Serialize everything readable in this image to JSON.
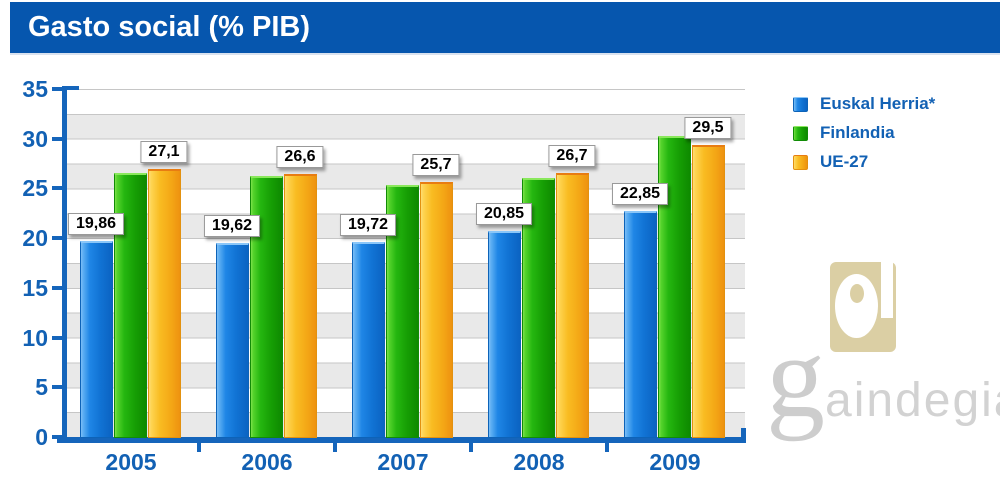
{
  "header": {
    "title": "Gasto social (% PIB)"
  },
  "chart_data": {
    "type": "bar",
    "title": "Gasto social (% PIB)",
    "categories": [
      "2005",
      "2006",
      "2007",
      "2008",
      "2009"
    ],
    "series": [
      {
        "name": "Euskal Herria*",
        "color_key": "blue",
        "color": "#1479DB",
        "values": [
          19.86,
          19.62,
          19.72,
          20.85,
          22.85
        ],
        "value_labels": [
          "19,86",
          "19,62",
          "19,72",
          "20,85",
          "22,85"
        ]
      },
      {
        "name": "Finlandia",
        "color_key": "green",
        "color": "#1FB30F",
        "values": [
          26.7,
          26.4,
          25.4,
          26.2,
          30.4
        ],
        "value_labels": [
          "",
          "",
          "",
          "",
          ""
        ]
      },
      {
        "name": "UE-27",
        "color_key": "orange",
        "color": "#F7B51E",
        "values": [
          27.1,
          26.6,
          25.7,
          26.7,
          29.5
        ],
        "value_labels": [
          "27,1",
          "26,6",
          "25,7",
          "26,7",
          "29,5"
        ]
      }
    ],
    "xlabel": "",
    "ylabel": "",
    "ylim": [
      0,
      35
    ],
    "yticks": [
      0,
      5,
      10,
      15,
      20,
      25,
      30,
      35
    ],
    "grid": "horizontal alternating white/gray bands every 2.5 units with thin gridlines",
    "legend_position": "top-right"
  },
  "colors": {
    "header_bg": "#0656AE",
    "header_text": "#FFFFFF",
    "axis": "#1565BB",
    "axis_text": "#1261B4",
    "band_gray": "#E9E9E9",
    "gridline": "#C6C6C6",
    "value_label_bg": "#FFFFFF",
    "value_label_text": "#000000",
    "watermark_tan": "#DBCFA4",
    "watermark_gray": "#D2D2D2"
  },
  "watermark": {
    "brand_initial": "g",
    "brand_rest": "aindegia",
    "brand": "gaindegia"
  }
}
